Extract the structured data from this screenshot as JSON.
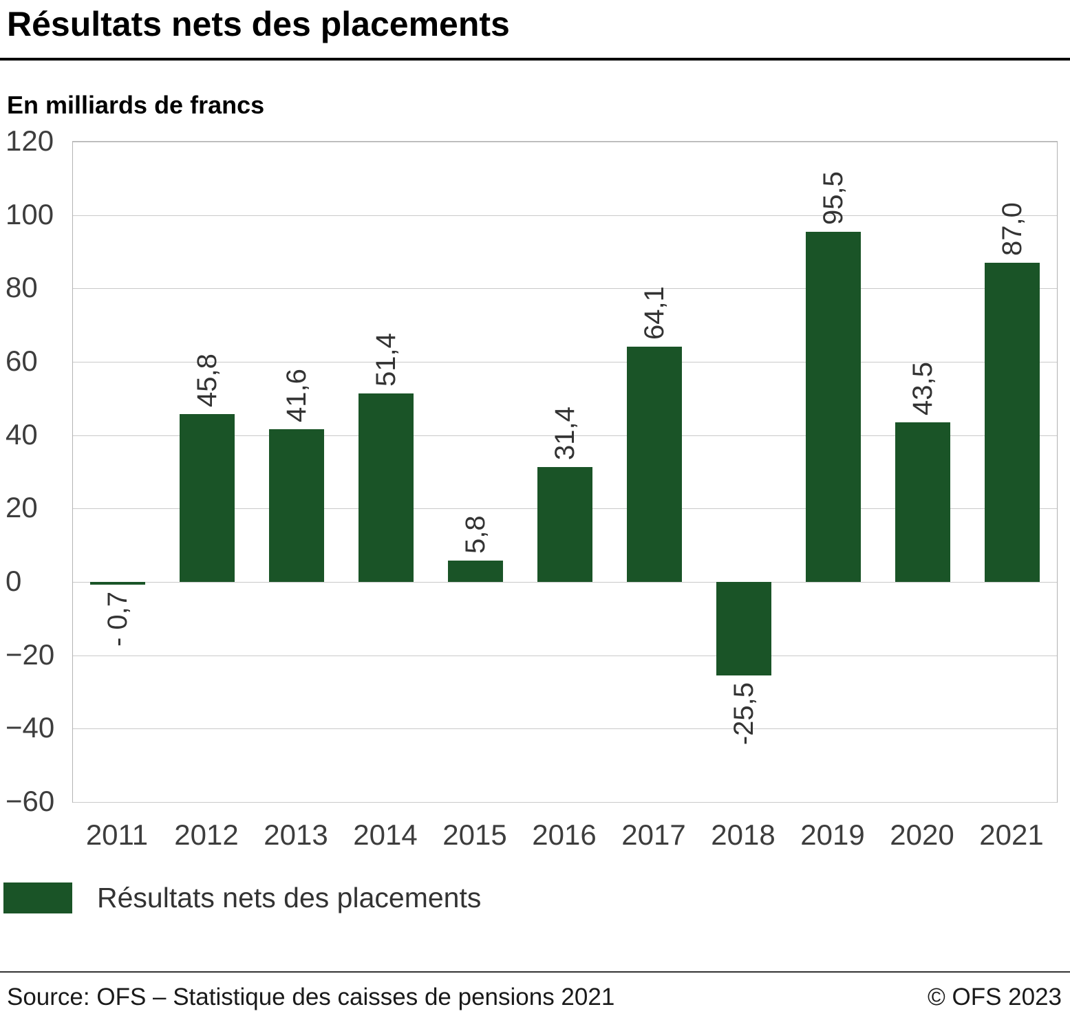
{
  "title": "Résultats nets des placements",
  "subtitle": "En milliards de francs",
  "legend_label": "Résultats nets des placements",
  "source": "Source: OFS – Statistique des caisses de pensions 2021",
  "copyright": "© OFS 2023",
  "chart_data": {
    "type": "bar",
    "title": "Résultats nets des placements",
    "ylabel": "En milliards de francs",
    "categories": [
      "2011",
      "2012",
      "2013",
      "2014",
      "2015",
      "2016",
      "2017",
      "2018",
      "2019",
      "2020",
      "2021"
    ],
    "values": [
      -0.7,
      45.8,
      41.6,
      51.4,
      5.8,
      31.4,
      64.1,
      -25.5,
      95.5,
      43.5,
      87.0
    ],
    "value_labels": [
      "- 0,7",
      "45,8",
      "41,6",
      "51,4",
      "5,8",
      "31,4",
      "64,1",
      "-25,5",
      "95,5",
      "43,5",
      "87,0"
    ],
    "ylim": [
      -60,
      120
    ],
    "yticks": [
      -60,
      -40,
      -20,
      0,
      20,
      40,
      60,
      80,
      100,
      120
    ],
    "ytick_labels": [
      "−60",
      "−40",
      "−20",
      "0",
      "20",
      "40",
      "60",
      "80",
      "100",
      "120"
    ],
    "bar_color": "#1a5427",
    "grid_color": "#c9c9c9",
    "grid": true,
    "legend_position": "bottom"
  }
}
